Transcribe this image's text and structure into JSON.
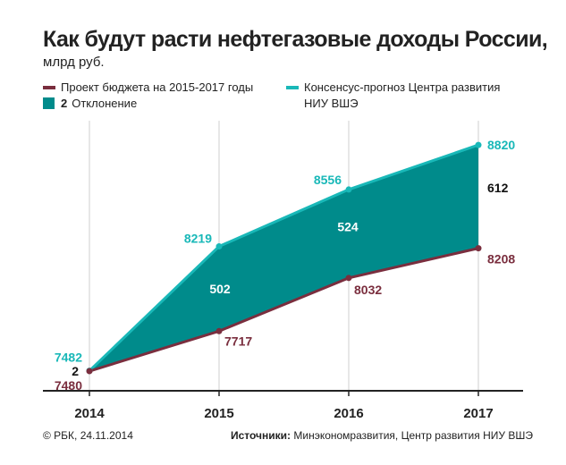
{
  "header": {
    "title": "Как будут расти нефтегазовые доходы России,",
    "subtitle": "млрд руб."
  },
  "legend": {
    "budget": "Проект бюджета на 2015-2017 годы",
    "deviation_num": "2",
    "deviation": "Отклонение",
    "consensus_line1": "Консенсус-прогноз Центра развития",
    "consensus_line2": "НИУ ВШЭ"
  },
  "footer": {
    "copyright": "© РБК, 24.11.2014",
    "sources_label": "Источники:",
    "sources_text": " Минэкономразвития, Центр развития НИУ ВШЭ"
  },
  "colors": {
    "budget": "#7a2e3e",
    "consensus": "#19b8b8",
    "deviation_fill": "#008b8b",
    "deviation_text": "#ffffff",
    "axis": "#222222",
    "grid": "#cfcfcf"
  },
  "chart_data": {
    "type": "area",
    "x": [
      "2014",
      "2015",
      "2016",
      "2017"
    ],
    "series": [
      {
        "name": "Проект бюджета на 2015-2017 годы",
        "values": [
          7480,
          7717,
          8032,
          8208
        ]
      },
      {
        "name": "Консенсус-прогноз Центра развития НИУ ВШЭ",
        "values": [
          7482,
          8219,
          8556,
          8820
        ]
      }
    ],
    "deviation": {
      "name": "Отклонение",
      "values": [
        2,
        502,
        524,
        612
      ],
      "labels": [
        "2",
        "502",
        "524",
        "612"
      ]
    },
    "budget_labels": [
      "7480",
      "7717",
      "8032",
      "8208"
    ],
    "consensus_labels": [
      "7482",
      "8219",
      "8556",
      "8820"
    ],
    "ylim": [
      7300,
      8900
    ],
    "grid": "vertical",
    "legend_position": "top"
  }
}
